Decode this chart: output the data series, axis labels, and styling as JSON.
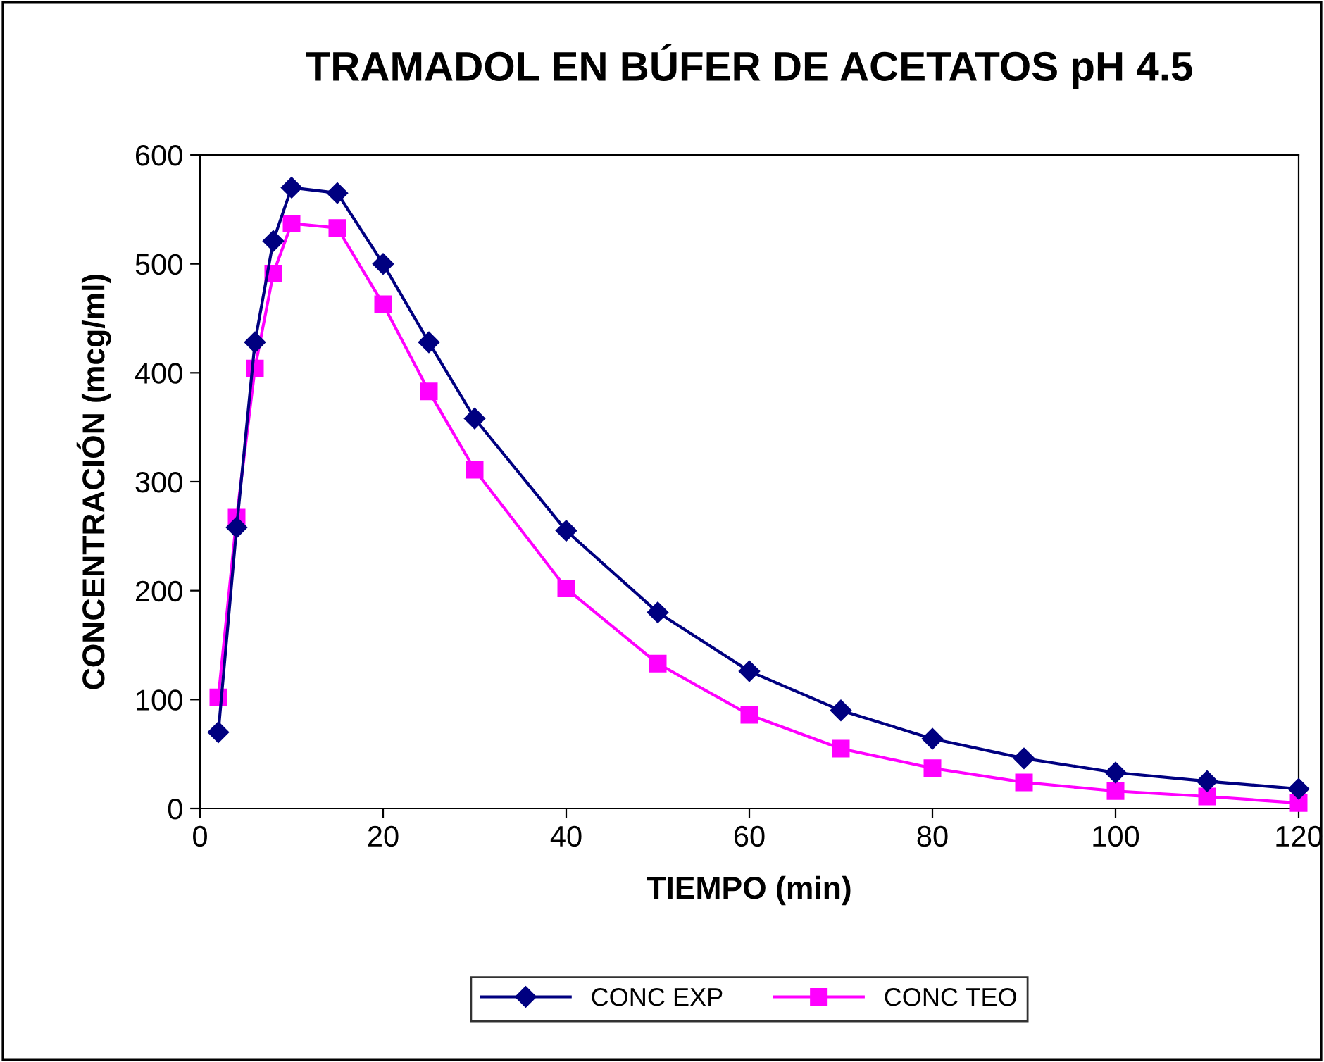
{
  "chart_data": {
    "type": "line",
    "title": "TRAMADOL EN BÚFER DE ACETATOS pH 4.5",
    "xlabel": "TIEMPO (min)",
    "ylabel": "CONCENTRACIÓN (mcg/ml)",
    "x": [
      2,
      4,
      6,
      8,
      10,
      15,
      20,
      25,
      30,
      40,
      50,
      60,
      70,
      80,
      90,
      100,
      110,
      120
    ],
    "series": [
      {
        "name": "CONC EXP",
        "color": "#000080",
        "marker": "diamond",
        "values": [
          70,
          258,
          428,
          521,
          570,
          565,
          500,
          428,
          358,
          255,
          180,
          126,
          90,
          64,
          46,
          33,
          25,
          18
        ]
      },
      {
        "name": "CONC TEO",
        "color": "#ff00ff",
        "marker": "square",
        "values": [
          102,
          267,
          404,
          491,
          537,
          533,
          463,
          383,
          311,
          202,
          133,
          86,
          55,
          37,
          24,
          16,
          11,
          5
        ]
      }
    ],
    "xlim": [
      0,
      120
    ],
    "xticks": [
      0,
      20,
      40,
      60,
      80,
      100,
      120
    ],
    "ylim": [
      0,
      600
    ],
    "yticks": [
      0,
      100,
      200,
      300,
      400,
      500,
      600
    ],
    "grid": false,
    "legend": "bottom",
    "line_style": "solid"
  }
}
